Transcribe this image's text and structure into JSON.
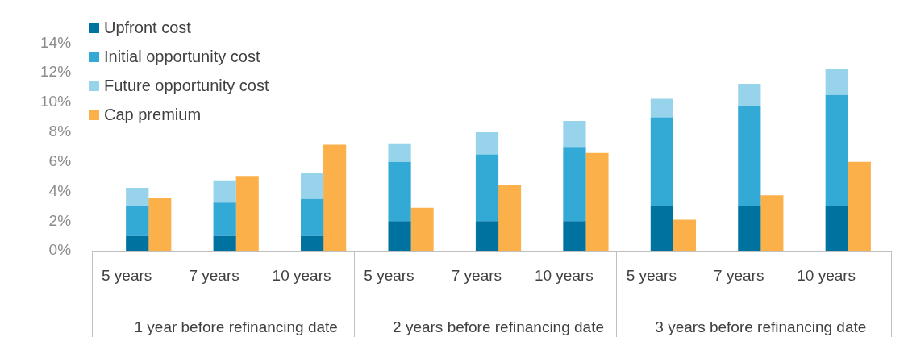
{
  "chart_data": {
    "type": "bar",
    "stacked": true,
    "categories": [
      "5 years",
      null,
      "7 years",
      null,
      "10 years",
      null,
      "5 years",
      null,
      "7 years",
      null,
      "10 years",
      null,
      "5 years",
      null,
      "7 years",
      null,
      "10 years",
      null
    ],
    "annotations": [
      "1 year before refinancing date",
      "2 years before refinancing date",
      "3 years before refinancing date"
    ],
    "series": [
      {
        "name": "Upfront cost",
        "color": "#0072a0",
        "values": [
          1,
          null,
          1,
          null,
          1,
          null,
          2,
          null,
          2,
          null,
          2,
          null,
          3,
          null,
          3,
          null,
          3,
          null
        ]
      },
      {
        "name": "Initial opportunity cost",
        "color": "#33a9d6",
        "values": [
          2,
          null,
          2.25,
          null,
          2.5,
          null,
          4,
          null,
          4.5,
          null,
          5,
          null,
          6,
          null,
          6.75,
          null,
          7.5,
          null
        ]
      },
      {
        "name": "Future opportunity cost",
        "color": "#98d3ec",
        "values": [
          1.25,
          null,
          1.5,
          null,
          1.75,
          null,
          1.25,
          null,
          1.5,
          null,
          1.75,
          null,
          1.25,
          null,
          1.5,
          null,
          1.75,
          null
        ]
      },
      {
        "name": "Cap premium",
        "color": "#fbb04a",
        "values": [
          null,
          3.6,
          null,
          5.05,
          null,
          7.15,
          null,
          2.9,
          null,
          4.45,
          null,
          6.6,
          null,
          2.1,
          null,
          3.75,
          null,
          6
        ]
      }
    ],
    "ylim": [
      0,
      14
    ],
    "yticks": [
      {
        "value": 0,
        "label": "0%"
      },
      {
        "value": 2,
        "label": "2%"
      },
      {
        "value": 4,
        "label": "4%"
      },
      {
        "value": 6,
        "label": "6%"
      },
      {
        "value": 8,
        "label": "8%"
      },
      {
        "value": 10,
        "label": "10%"
      },
      {
        "value": 12,
        "label": "12%"
      },
      {
        "value": 14,
        "label": "14%"
      }
    ],
    "grid": false,
    "legend": "top left"
  }
}
